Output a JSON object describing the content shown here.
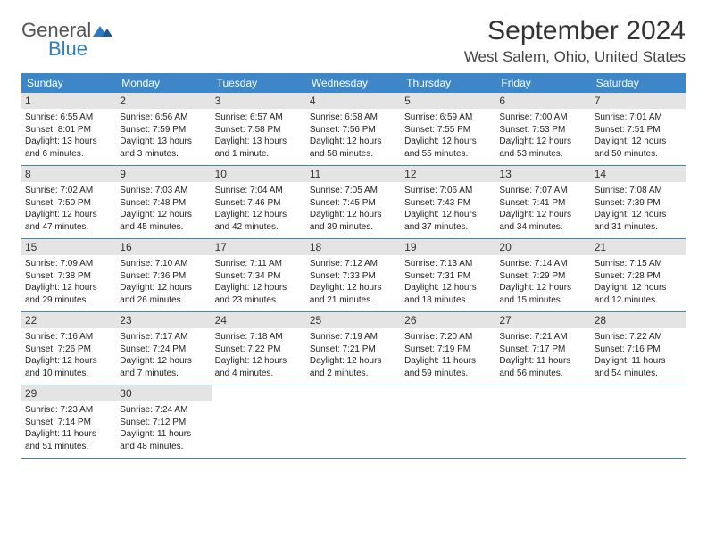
{
  "logo": {
    "text_top": "General",
    "text_bottom": "Blue"
  },
  "title": "September 2024",
  "location": "West Salem, Ohio, United States",
  "colors": {
    "header_bg": "#3d87c9",
    "header_text": "#ffffff",
    "daynum_bg": "#e4e4e4",
    "row_border": "#3d87c9",
    "logo_gray": "#555555",
    "logo_blue": "#2d7cc0"
  },
  "weekdays": [
    "Sunday",
    "Monday",
    "Tuesday",
    "Wednesday",
    "Thursday",
    "Friday",
    "Saturday"
  ],
  "weeks": [
    [
      {
        "n": "1",
        "sr": "6:55 AM",
        "ss": "8:01 PM",
        "dl": "13 hours and 6 minutes."
      },
      {
        "n": "2",
        "sr": "6:56 AM",
        "ss": "7:59 PM",
        "dl": "13 hours and 3 minutes."
      },
      {
        "n": "3",
        "sr": "6:57 AM",
        "ss": "7:58 PM",
        "dl": "13 hours and 1 minute."
      },
      {
        "n": "4",
        "sr": "6:58 AM",
        "ss": "7:56 PM",
        "dl": "12 hours and 58 minutes."
      },
      {
        "n": "5",
        "sr": "6:59 AM",
        "ss": "7:55 PM",
        "dl": "12 hours and 55 minutes."
      },
      {
        "n": "6",
        "sr": "7:00 AM",
        "ss": "7:53 PM",
        "dl": "12 hours and 53 minutes."
      },
      {
        "n": "7",
        "sr": "7:01 AM",
        "ss": "7:51 PM",
        "dl": "12 hours and 50 minutes."
      }
    ],
    [
      {
        "n": "8",
        "sr": "7:02 AM",
        "ss": "7:50 PM",
        "dl": "12 hours and 47 minutes."
      },
      {
        "n": "9",
        "sr": "7:03 AM",
        "ss": "7:48 PM",
        "dl": "12 hours and 45 minutes."
      },
      {
        "n": "10",
        "sr": "7:04 AM",
        "ss": "7:46 PM",
        "dl": "12 hours and 42 minutes."
      },
      {
        "n": "11",
        "sr": "7:05 AM",
        "ss": "7:45 PM",
        "dl": "12 hours and 39 minutes."
      },
      {
        "n": "12",
        "sr": "7:06 AM",
        "ss": "7:43 PM",
        "dl": "12 hours and 37 minutes."
      },
      {
        "n": "13",
        "sr": "7:07 AM",
        "ss": "7:41 PM",
        "dl": "12 hours and 34 minutes."
      },
      {
        "n": "14",
        "sr": "7:08 AM",
        "ss": "7:39 PM",
        "dl": "12 hours and 31 minutes."
      }
    ],
    [
      {
        "n": "15",
        "sr": "7:09 AM",
        "ss": "7:38 PM",
        "dl": "12 hours and 29 minutes."
      },
      {
        "n": "16",
        "sr": "7:10 AM",
        "ss": "7:36 PM",
        "dl": "12 hours and 26 minutes."
      },
      {
        "n": "17",
        "sr": "7:11 AM",
        "ss": "7:34 PM",
        "dl": "12 hours and 23 minutes."
      },
      {
        "n": "18",
        "sr": "7:12 AM",
        "ss": "7:33 PM",
        "dl": "12 hours and 21 minutes."
      },
      {
        "n": "19",
        "sr": "7:13 AM",
        "ss": "7:31 PM",
        "dl": "12 hours and 18 minutes."
      },
      {
        "n": "20",
        "sr": "7:14 AM",
        "ss": "7:29 PM",
        "dl": "12 hours and 15 minutes."
      },
      {
        "n": "21",
        "sr": "7:15 AM",
        "ss": "7:28 PM",
        "dl": "12 hours and 12 minutes."
      }
    ],
    [
      {
        "n": "22",
        "sr": "7:16 AM",
        "ss": "7:26 PM",
        "dl": "12 hours and 10 minutes."
      },
      {
        "n": "23",
        "sr": "7:17 AM",
        "ss": "7:24 PM",
        "dl": "12 hours and 7 minutes."
      },
      {
        "n": "24",
        "sr": "7:18 AM",
        "ss": "7:22 PM",
        "dl": "12 hours and 4 minutes."
      },
      {
        "n": "25",
        "sr": "7:19 AM",
        "ss": "7:21 PM",
        "dl": "12 hours and 2 minutes."
      },
      {
        "n": "26",
        "sr": "7:20 AM",
        "ss": "7:19 PM",
        "dl": "11 hours and 59 minutes."
      },
      {
        "n": "27",
        "sr": "7:21 AM",
        "ss": "7:17 PM",
        "dl": "11 hours and 56 minutes."
      },
      {
        "n": "28",
        "sr": "7:22 AM",
        "ss": "7:16 PM",
        "dl": "11 hours and 54 minutes."
      }
    ],
    [
      {
        "n": "29",
        "sr": "7:23 AM",
        "ss": "7:14 PM",
        "dl": "11 hours and 51 minutes."
      },
      {
        "n": "30",
        "sr": "7:24 AM",
        "ss": "7:12 PM",
        "dl": "11 hours and 48 minutes."
      },
      null,
      null,
      null,
      null,
      null
    ]
  ],
  "labels": {
    "sunrise": "Sunrise:",
    "sunset": "Sunset:",
    "daylight": "Daylight:"
  }
}
